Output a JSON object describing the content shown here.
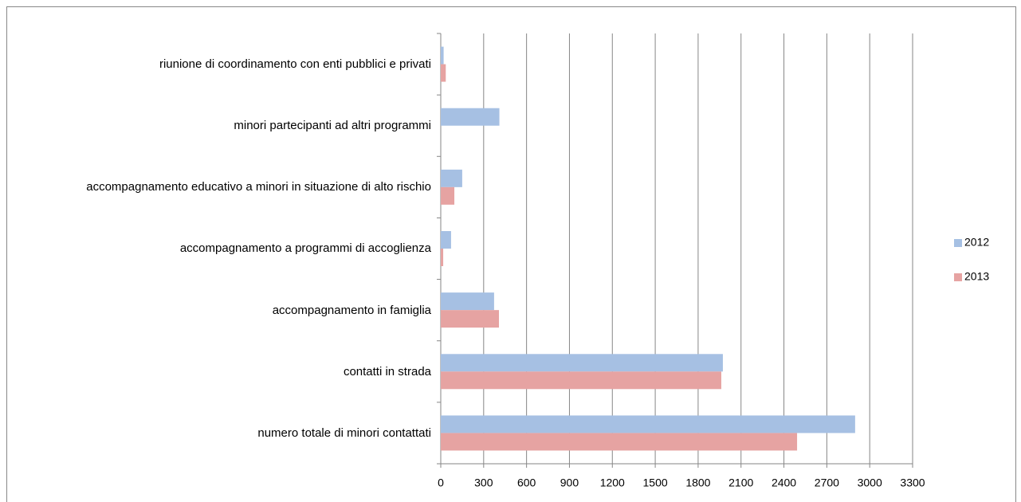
{
  "chart_data": {
    "type": "barh",
    "categories": [
      "riunione di coordinamento con enti pubblici e privati",
      "minori partecipanti ad altri programmi",
      "accompagnamento educativo a minori in situazione di alto rischio",
      "accompagnamento a programmi di accoglienza",
      "accompagnamento in famiglia",
      "contatti in strada",
      "numero totale di minori contattati"
    ],
    "series": [
      {
        "name": "2012",
        "color": "#a6c0e3",
        "values": [
          20,
          410,
          150,
          72,
          373,
          1973,
          2898
        ]
      },
      {
        "name": "2013",
        "color": "#e6a3a2",
        "values": [
          35,
          0,
          95,
          17,
          407,
          1962,
          2492
        ]
      }
    ],
    "xlim": [
      0,
      3300
    ],
    "xticks": [
      0,
      300,
      600,
      900,
      1200,
      1500,
      1800,
      2100,
      2400,
      2700,
      3000,
      3300
    ],
    "grid": true,
    "legend": "right"
  }
}
